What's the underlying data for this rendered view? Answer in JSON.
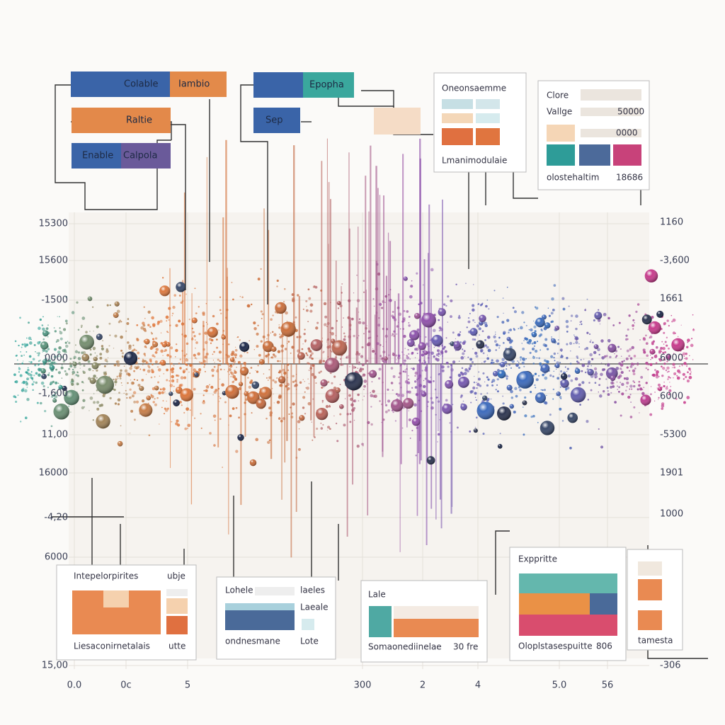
{
  "top_boxes": {
    "box1": [
      "Colable",
      "Iambio"
    ],
    "box2": "Raltie",
    "box3": [
      "Enable",
      "Calpola"
    ],
    "box4": "Epopha",
    "box5": "Sep"
  },
  "panel_a": {
    "title": "Oneonsaemme",
    "footer": "Lmanimodulaie"
  },
  "panel_b": {
    "title": "Clore",
    "row": "Vallge",
    "row_value": "50000",
    "row2_value": "0000",
    "footer": "olostehaltim",
    "footer_value": "18686"
  },
  "left_axis": [
    "15300",
    "15600",
    "-1500",
    "0000",
    "-1,600",
    "11,00",
    "16000",
    "-4,20",
    "6000",
    "15,00"
  ],
  "right_axis": [
    "1160",
    "-3,600",
    "1661",
    "6000",
    "6000",
    "-5300",
    "1901",
    "1000",
    "-306"
  ],
  "bottom_axis": [
    "0.0",
    "0c",
    "5",
    "300",
    "2",
    "4",
    "5.0",
    "56"
  ],
  "bottom_panels": [
    {
      "title": "Intepelorpirites",
      "side": "ubje",
      "footer": "Liesaconirnetalais",
      "footer_side": "utte"
    },
    {
      "title": "Lohele",
      "side": "laeles",
      "side2": "Laeale",
      "footer": "ondnesmane",
      "footer_side": "Lote"
    },
    {
      "title": "Lale",
      "footer": "Somaonediinelae",
      "footer_side": "30 fre"
    },
    {
      "title": "Exppritte",
      "footer": "Oloplstasespuitte",
      "footer_side": "806",
      "side": "tamesta"
    }
  ]
}
